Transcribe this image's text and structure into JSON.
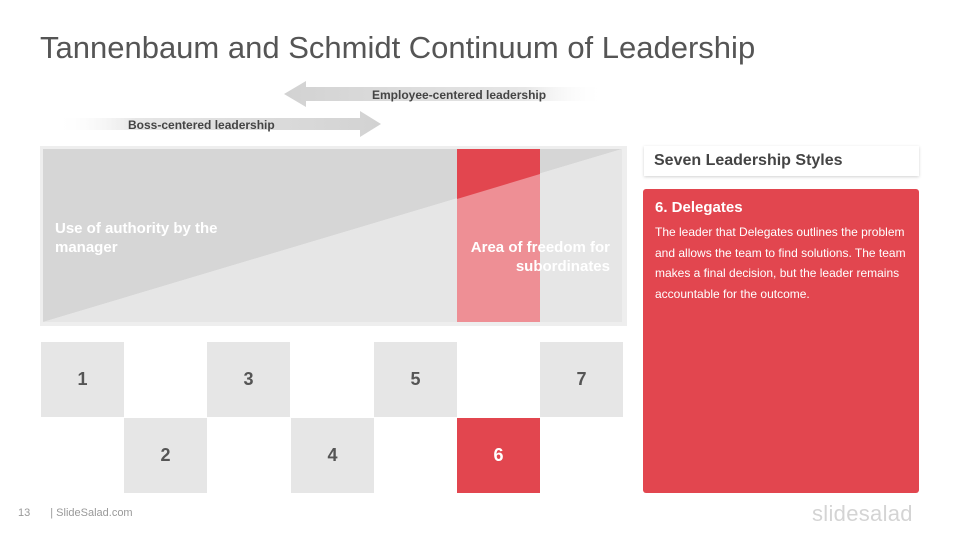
{
  "slide": {
    "title": "Tannenbaum and Schmidt Continuum of Leadership",
    "arrows": {
      "employee_label": "Employee-centered  leadership",
      "boss_label": "Boss-centered leadership"
    },
    "diagram": {
      "authority_label": "Use of authority by the manager",
      "freedom_label": "Area of freedom for subordinates"
    },
    "styles": [
      "1",
      "2",
      "3",
      "4",
      "5",
      "6",
      "7"
    ],
    "selected_style": "6",
    "panel": {
      "heading": "Seven Leadership Styles",
      "title": "6. Delegates",
      "text": "The leader that Delegates outlines the problem and allows the team to find solutions. The team makes a final decision, but the leader remains accountable for the outcome."
    },
    "footer": {
      "page_number": "13",
      "site": "| SlideSalad.com"
    },
    "logo": "slidesalad",
    "colors": {
      "accent": "#e2464f",
      "accent_light": "#ee8f95",
      "gray_dark": "#d6d6d6",
      "gray_light": "#e6e6e6",
      "text": "#555555"
    }
  }
}
